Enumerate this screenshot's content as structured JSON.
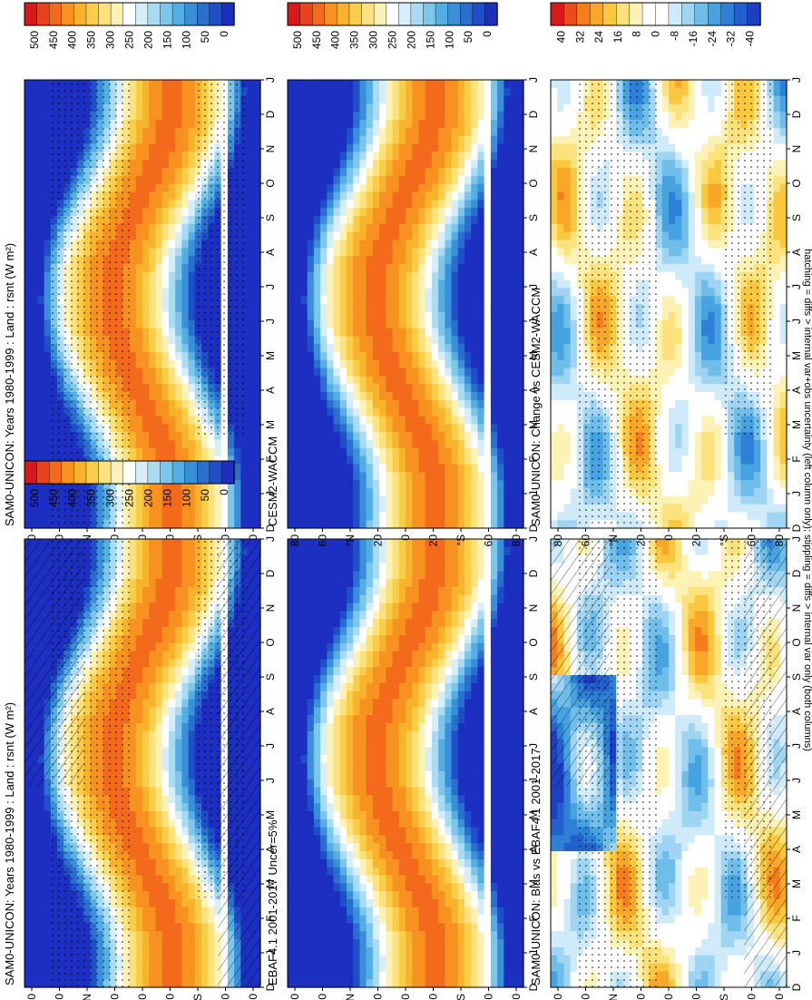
{
  "figure": {
    "footnote": "hatching = diffs > internal var+obs uncertainty (left column only); stippling = diffs > internal var only (both columns)"
  },
  "chart_data": [
    {
      "type": "heatmap",
      "title": "SAM0-UNICON: Years 1980-1999 : Land : rsnt (W m²)",
      "variable": "rsnt",
      "units": "W m-2",
      "x_ticks": [
        "D",
        "J",
        "F",
        "M",
        "A",
        "M",
        "J",
        "J",
        "A",
        "S",
        "O",
        "N",
        "D",
        "J"
      ],
      "y_ticks": [
        "80",
        "60",
        "°N",
        "20",
        "0",
        "20",
        "°S",
        "60",
        "80"
      ],
      "colorbar_ticks": [
        "500",
        "450",
        "400",
        "350",
        "300",
        "250",
        "200",
        "150",
        "100",
        "50",
        "0"
      ],
      "color_range": [
        0,
        500
      ],
      "overlays": [
        "stippling",
        "hatching"
      ]
    },
    {
      "type": "heatmap",
      "title": "SAM0-UNICON: Years 1980-1999 : Land : rsnt (W m²)",
      "variable": "rsnt",
      "units": "W m-2",
      "x_ticks": [
        "D",
        "J",
        "F",
        "M",
        "A",
        "M",
        "J",
        "J",
        "A",
        "S",
        "O",
        "N",
        "D",
        "J"
      ],
      "y_ticks": [
        "80",
        "60",
        "°N",
        "20",
        "0",
        "20",
        "°S",
        "60",
        "80"
      ],
      "colorbar_ticks": [
        "500",
        "450",
        "400",
        "350",
        "300",
        "250",
        "200",
        "150",
        "100",
        "50",
        "0"
      ],
      "color_range": [
        0,
        500
      ],
      "overlays": [
        "stippling"
      ]
    },
    {
      "type": "heatmap",
      "title": "EBAF4.1 2001-2017 Uncer=5%",
      "x_ticks": [
        "D",
        "J",
        "F",
        "M",
        "A",
        "M",
        "J",
        "J",
        "A",
        "S",
        "O",
        "N",
        "D",
        "J"
      ],
      "y_ticks": [
        "80",
        "60",
        "°N",
        "20",
        "0",
        "20",
        "°S",
        "60",
        "80"
      ],
      "colorbar_ticks": [
        "500",
        "450",
        "400",
        "350",
        "300",
        "250",
        "200",
        "150",
        "100",
        "50",
        "0"
      ],
      "color_range": [
        0,
        500
      ]
    },
    {
      "type": "heatmap",
      "title": "CESM2-WACCM",
      "x_ticks": [
        "D",
        "J",
        "F",
        "M",
        "A",
        "M",
        "J",
        "J",
        "A",
        "S",
        "O",
        "N",
        "D",
        "J"
      ],
      "y_ticks": [
        "80",
        "60",
        "°N",
        "20",
        "0",
        "20",
        "°S",
        "60",
        "80"
      ],
      "colorbar_ticks": [
        "500",
        "450",
        "400",
        "350",
        "300",
        "250",
        "200",
        "150",
        "100",
        "50",
        "0"
      ],
      "color_range": [
        0,
        500
      ]
    },
    {
      "type": "heatmap",
      "title": "SAM0-UNICON: Bias vs EBAF4.1 2001-2017",
      "x_ticks": [
        "D",
        "J",
        "F",
        "M",
        "A",
        "M",
        "J",
        "J",
        "A",
        "S",
        "O",
        "N",
        "D",
        "J"
      ],
      "y_ticks": [
        "80",
        "60",
        "°N",
        "20",
        "0",
        "20",
        "°S",
        "60",
        "80"
      ],
      "colorbar_ticks": [
        "40",
        "32",
        "24",
        "16",
        "8",
        "0",
        "-8",
        "-16",
        "-24",
        "-32",
        "-40"
      ],
      "color_range": [
        -40,
        40
      ],
      "overlays": [
        "stippling",
        "hatching"
      ]
    },
    {
      "type": "heatmap",
      "title": "SAM0-UNICON: Change vs CESM2-WACCM",
      "x_ticks": [
        "D",
        "J",
        "F",
        "M",
        "A",
        "M",
        "J",
        "J",
        "A",
        "S",
        "O",
        "N",
        "D",
        "J"
      ],
      "y_ticks": [
        "80",
        "60",
        "°N",
        "20",
        "0",
        "20",
        "°S",
        "60",
        "80"
      ],
      "colorbar_ticks": [
        "40",
        "32",
        "24",
        "16",
        "8",
        "0",
        "-8",
        "-16",
        "-24",
        "-32",
        "-40"
      ],
      "color_range": [
        -40,
        40
      ],
      "overlays": [
        "stippling"
      ]
    }
  ],
  "colors": {
    "absolute_scale": [
      "#d7191c",
      "#e8431b",
      "#f36a1c",
      "#f7911f",
      "#f8b22c",
      "#f9cd47",
      "#fbe27c",
      "#fdf2b5",
      "#ffffff",
      "#d6eefa",
      "#a9dbf3",
      "#7cc6ec",
      "#53aee3",
      "#3a8fd9",
      "#2a6fd0",
      "#1f4fc8",
      "#1c2fc0"
    ],
    "difference_scale": [
      "#d7191c",
      "#ea4b1c",
      "#f57d1e",
      "#f8a728",
      "#f9c83f",
      "#fbe27c",
      "#fdf2b5",
      "#ffffff",
      "#ffffff",
      "#cfeaf9",
      "#9fd5f2",
      "#6fbeea",
      "#46a3e0",
      "#2e80d6",
      "#2460cd",
      "#1c3fc3"
    ]
  }
}
